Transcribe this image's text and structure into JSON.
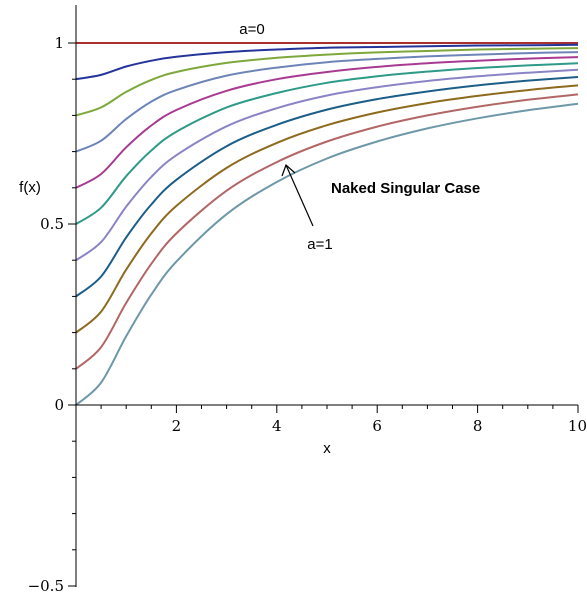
{
  "chart_data": {
    "type": "line",
    "xlabel": "x",
    "ylabel": "f(x)",
    "xlim": [
      0,
      10
    ],
    "ylim": [
      -0.5,
      1.1
    ],
    "x_ticks": [
      2,
      4,
      6,
      8,
      10
    ],
    "y_ticks": [
      -0.5,
      0,
      0.5,
      1
    ],
    "x_tick_labels": [
      "2",
      "4",
      "6",
      "8",
      "10"
    ],
    "y_tick_labels": [
      "−0.5",
      "0",
      "0.5",
      "1"
    ],
    "grid": false,
    "annotations": {
      "top_curve_label": "a=0",
      "bottom_curve_label": "a=1",
      "case_label": "Naked Singular Case"
    },
    "x": [
      0,
      0.5,
      1,
      1.5,
      2,
      3,
      4,
      5,
      6,
      7,
      8,
      9,
      10
    ],
    "series": [
      {
        "color": "#a8302f",
        "values": [
          1.0,
          1.0,
          1.0,
          1.0,
          1.0,
          1.0,
          1.0,
          1.0,
          1.0,
          1.0,
          1.0,
          1.0,
          1.0
        ]
      },
      {
        "color": "#24349a",
        "values": [
          0.9,
          0.912,
          0.935,
          0.951,
          0.962,
          0.975,
          0.982,
          0.987,
          0.989,
          0.991,
          0.993,
          0.994,
          0.995
        ]
      },
      {
        "color": "#7ea83c",
        "values": [
          0.8,
          0.822,
          0.865,
          0.898,
          0.92,
          0.945,
          0.959,
          0.968,
          0.974,
          0.978,
          0.982,
          0.984,
          0.986
        ]
      },
      {
        "color": "#6e84b8",
        "values": [
          0.7,
          0.73,
          0.79,
          0.838,
          0.87,
          0.91,
          0.932,
          0.947,
          0.956,
          0.963,
          0.968,
          0.972,
          0.975
        ]
      },
      {
        "color": "#a83a92",
        "values": [
          0.6,
          0.638,
          0.712,
          0.772,
          0.815,
          0.868,
          0.9,
          0.92,
          0.934,
          0.944,
          0.951,
          0.957,
          0.961
        ]
      },
      {
        "color": "#2e9a88",
        "values": [
          0.5,
          0.545,
          0.632,
          0.703,
          0.755,
          0.822,
          0.862,
          0.89,
          0.908,
          0.921,
          0.931,
          0.938,
          0.944
        ]
      },
      {
        "color": "#8a84c6",
        "values": [
          0.4,
          0.45,
          0.548,
          0.63,
          0.69,
          0.77,
          0.82,
          0.855,
          0.878,
          0.895,
          0.908,
          0.918,
          0.926
        ]
      },
      {
        "color": "#1c5e88",
        "values": [
          0.3,
          0.355,
          0.463,
          0.554,
          0.622,
          0.715,
          0.774,
          0.816,
          0.845,
          0.866,
          0.883,
          0.896,
          0.906
        ]
      },
      {
        "color": "#8c6a1e",
        "values": [
          0.2,
          0.258,
          0.374,
          0.474,
          0.55,
          0.655,
          0.724,
          0.773,
          0.808,
          0.834,
          0.854,
          0.87,
          0.883
        ]
      },
      {
        "color": "#b26666",
        "values": [
          0.1,
          0.16,
          0.282,
          0.39,
          0.474,
          0.592,
          0.671,
          0.728,
          0.769,
          0.8,
          0.824,
          0.843,
          0.858
        ]
      },
      {
        "color": "#6e98a8",
        "values": [
          0.0,
          0.062,
          0.19,
          0.305,
          0.396,
          0.527,
          0.616,
          0.681,
          0.728,
          0.764,
          0.792,
          0.814,
          0.832
        ]
      }
    ]
  }
}
